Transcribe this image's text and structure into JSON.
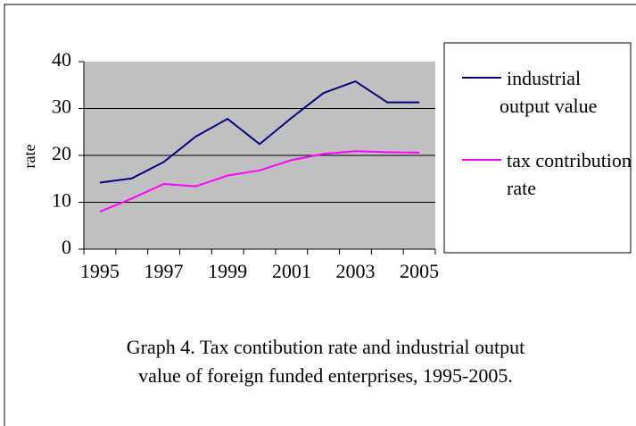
{
  "chart_data": {
    "type": "line",
    "caption": [
      "Graph 4. Tax contibution rate and industrial output",
      "value of foreign funded enterprises, 1995-2005."
    ],
    "y_label": "rate",
    "categories": [
      "1995",
      null,
      "1997",
      null,
      "1999",
      null,
      "2001",
      null,
      "2003",
      null,
      "2005"
    ],
    "series": [
      {
        "name": "industrial output value",
        "color": "#000080",
        "values": [
          14.2,
          15.1,
          18.6,
          24,
          27.8,
          22.4,
          28,
          33.3,
          35.8,
          31.3,
          31.3
        ]
      },
      {
        "name": "tax contribution rate",
        "color": "#ff00ff",
        "values": [
          8,
          10.8,
          13.9,
          13.4,
          15.7,
          16.8,
          19,
          20.3,
          20.9,
          20.7,
          20.6
        ]
      }
    ],
    "ylim": [
      0,
      40
    ],
    "yticks": [
      0,
      10,
      20,
      30,
      40
    ],
    "grid": true
  }
}
